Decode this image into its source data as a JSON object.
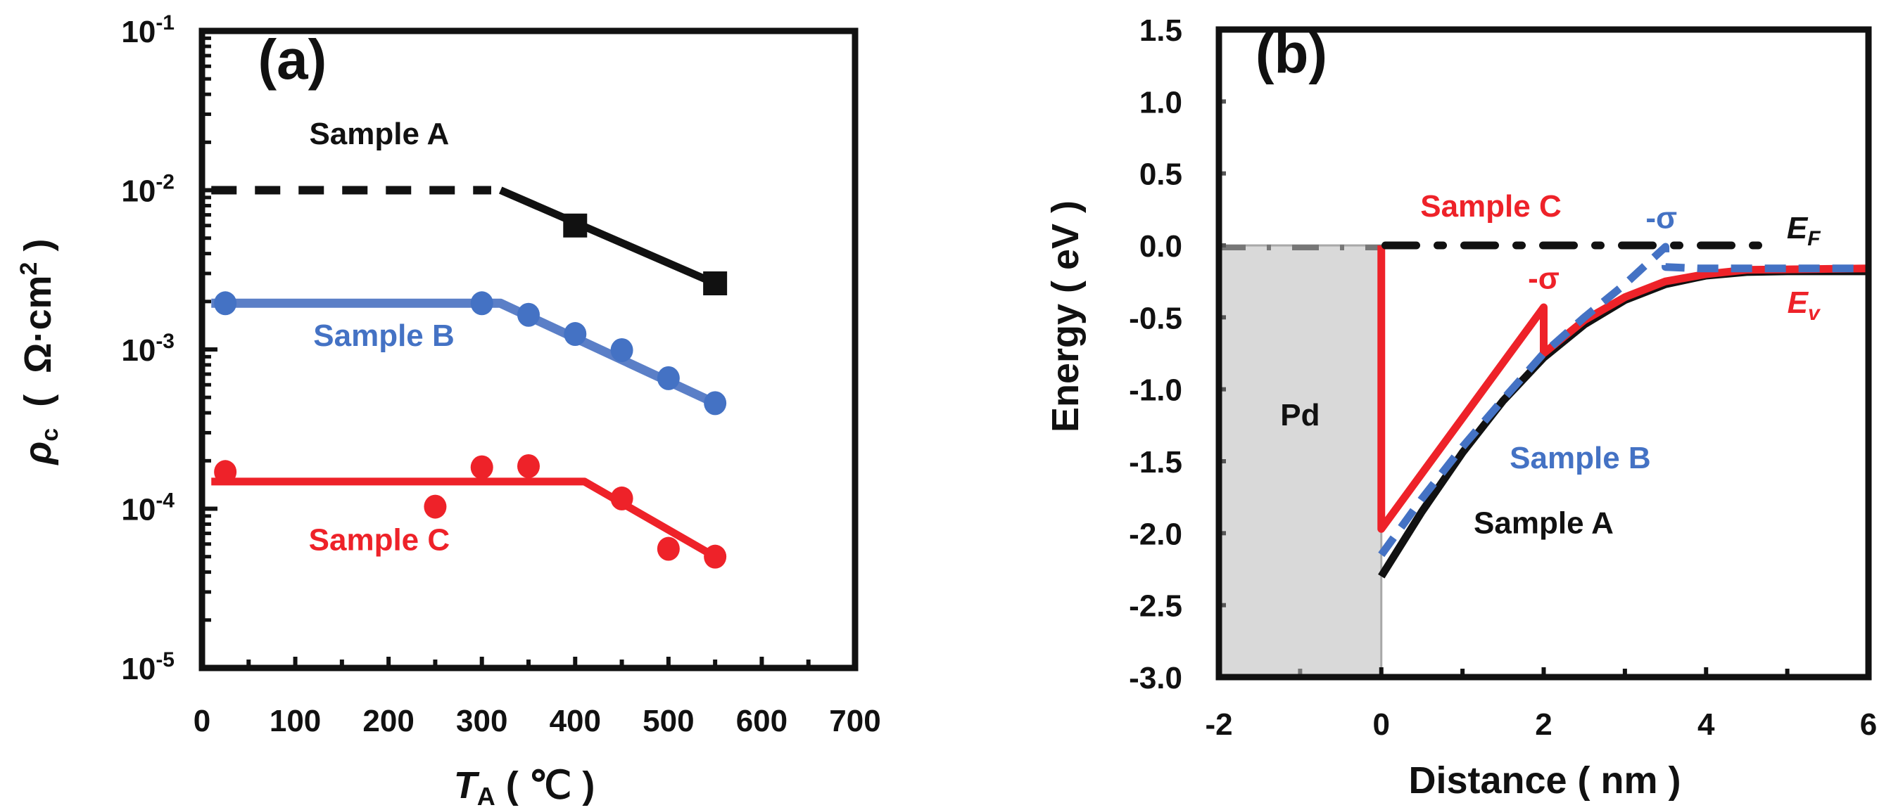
{
  "chart_data": [
    {
      "panel": "(a)",
      "type": "scatter",
      "title": "",
      "xlabel": "T_A ( ℃ )",
      "xlabel_parts": {
        "symbol": "T",
        "subscript": "A",
        "unit": " ( ℃ )"
      },
      "ylabel": "ρc ( Ω·cm² )",
      "ylabel_parts": {
        "symbol": "ρ",
        "subscript": "c",
        "unit_open": "  (  Ω·cm",
        "sup": "2",
        "unit_close": " )"
      },
      "yscale": "log",
      "xlim": [
        0,
        700
      ],
      "ylim": [
        1e-05,
        0.1
      ],
      "xticks": [
        "0",
        "100",
        "200",
        "300",
        "400",
        "500",
        "600",
        "700"
      ],
      "xtick_values": [
        0,
        100,
        200,
        300,
        400,
        500,
        600,
        700
      ],
      "yticks": [
        {
          "value": 0.1,
          "base": "10",
          "exp": "-1"
        },
        {
          "value": 0.01,
          "base": "10",
          "exp": "-2"
        },
        {
          "value": 0.001,
          "base": "10",
          "exp": "-3"
        },
        {
          "value": 0.0001,
          "base": "10",
          "exp": "-4"
        },
        {
          "value": 1e-05,
          "base": "10",
          "exp": "-5"
        }
      ],
      "grid": false,
      "series": [
        {
          "name": "Sample A",
          "color": "#111111",
          "marker": "square",
          "x": [
            400,
            550
          ],
          "y": [
            0.006,
            0.0026
          ],
          "fit_dashed": {
            "x": [
              10,
              310
            ],
            "y": [
              0.01,
              0.01
            ]
          },
          "fit_solid": {
            "x": [
              320,
              550
            ],
            "y": [
              0.01,
              0.0026
            ]
          }
        },
        {
          "name": "Sample B",
          "color": "#4472c4",
          "marker": "circle",
          "x": [
            25,
            300,
            350,
            400,
            450,
            500,
            550
          ],
          "y": [
            0.00195,
            0.00195,
            0.00165,
            0.00125,
            0.00099,
            0.00066,
            0.00046
          ],
          "fit_solid": {
            "x": [
              10,
              320,
              550
            ],
            "y": [
              0.00195,
              0.00195,
              0.00046
            ]
          }
        },
        {
          "name": "Sample C",
          "color": "#ee2229",
          "marker": "circle",
          "x": [
            25,
            250,
            300,
            350,
            450,
            500,
            550
          ],
          "y": [
            0.00017,
            0.000103,
            0.000182,
            0.000185,
            0.000116,
            5.6e-05,
            5e-05
          ],
          "fit_solid": {
            "x": [
              10,
              410,
              550
            ],
            "y": [
              0.000148,
              0.000148,
              5e-05
            ]
          }
        }
      ],
      "annotations": [
        {
          "text": "(a)",
          "role": "panel-label",
          "x": 60,
          "y": 0.05
        },
        {
          "text": "Sample A",
          "color": "#111111",
          "x": 190,
          "y": 0.0195
        },
        {
          "text": "Sample B",
          "color": "#4472c4",
          "x": 195,
          "y": 0.00105
        },
        {
          "text": "Sample C",
          "color": "#ee2229",
          "x": 190,
          "y": 5.5e-05
        }
      ]
    },
    {
      "panel": "(b)",
      "type": "line",
      "title": "",
      "xlabel": "Distance ( nm )",
      "ylabel": "Energy ( eV )",
      "xlim": [
        -2,
        6
      ],
      "ylim": [
        -3.0,
        1.5
      ],
      "xticks": [
        "-2",
        "0",
        "2",
        "4",
        "6"
      ],
      "xtick_values": [
        -2,
        0,
        2,
        4,
        6
      ],
      "xminor": [
        -1,
        1,
        3,
        5
      ],
      "yticks": [
        "1.5",
        "1.0",
        "0.5",
        "0.0",
        "-0.5",
        "-1.0",
        "-1.5",
        "-2.0",
        "-2.5",
        "-3.0"
      ],
      "ytick_values": [
        1.5,
        1.0,
        0.5,
        0.0,
        -0.5,
        -1.0,
        -1.5,
        -2.0,
        -2.5,
        -3.0
      ],
      "grid": false,
      "regions": [
        {
          "name": "Pd",
          "x": [
            -2,
            0
          ],
          "y": [
            -3.0,
            0.0
          ],
          "color": "#d9d9d9"
        }
      ],
      "series": [
        {
          "name": "E_F",
          "color": "#111111",
          "style": "dash-dot",
          "x": [
            0.05,
            4.7
          ],
          "y": [
            0.0,
            0.0
          ]
        },
        {
          "name": "Sample A",
          "color": "#111111",
          "style": "solid",
          "x": [
            0,
            0.5,
            1.0,
            1.5,
            2.0,
            2.5,
            3.0,
            3.5,
            4.0,
            4.5,
            5.0,
            6.0
          ],
          "y": [
            -2.3,
            -1.85,
            -1.44,
            -1.08,
            -0.78,
            -0.55,
            -0.38,
            -0.27,
            -0.21,
            -0.185,
            -0.18,
            -0.18
          ]
        },
        {
          "name": "Sample B",
          "color": "#4472c4",
          "style": "dashed",
          "x": [
            0,
            0.5,
            1.0,
            1.5,
            2.0,
            2.5,
            3.0,
            3.5,
            3.5,
            3.9,
            6.0
          ],
          "y": [
            -2.15,
            -1.76,
            -1.4,
            -1.07,
            -0.75,
            -0.5,
            -0.27,
            -0.01,
            -0.15,
            -0.16,
            -0.16
          ]
        },
        {
          "name": "Sample C",
          "color": "#ee2229",
          "style": "solid",
          "x": [
            0,
            0,
            1.0,
            2.0,
            2.0,
            2.5,
            3.0,
            3.5,
            4.0,
            4.5,
            6.0
          ],
          "y": [
            0.0,
            -1.97,
            -1.2,
            -0.43,
            -0.75,
            -0.52,
            -0.36,
            -0.25,
            -0.2,
            -0.17,
            -0.16
          ]
        }
      ],
      "annotations": [
        {
          "text": "(b)",
          "role": "panel-label",
          "x": -1.55,
          "y": 1.2
        },
        {
          "text": "Pd",
          "color": "#111111",
          "x": -1.0,
          "y": -1.25
        },
        {
          "text": "Sample C",
          "color": "#ee2229",
          "x": 1.35,
          "y": 0.2
        },
        {
          "text": "-σ",
          "color": "#4472c4",
          "x": 3.45,
          "y": 0.12
        },
        {
          "text": "-σ",
          "color": "#ee2229",
          "x": 2.0,
          "y": -0.3
        },
        {
          "text": "E",
          "sub": "F",
          "color": "#111111",
          "italic": true,
          "x": 5.2,
          "y": 0.05
        },
        {
          "text": "E",
          "sub": "v",
          "color": "#ee2229",
          "italic": true,
          "x": 5.2,
          "y": -0.47
        },
        {
          "text": "Sample B",
          "color": "#4472c4",
          "x": 2.45,
          "y": -1.55
        },
        {
          "text": "Sample A",
          "color": "#111111",
          "x": 2.0,
          "y": -2.0
        }
      ]
    }
  ]
}
